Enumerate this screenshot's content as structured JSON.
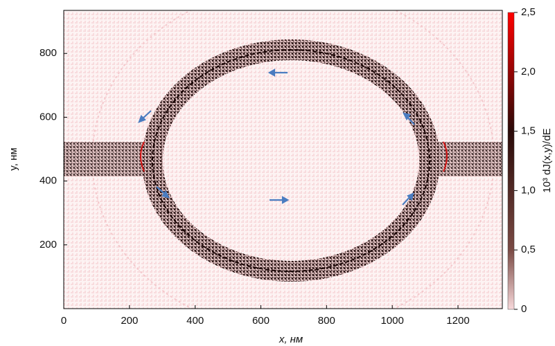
{
  "chart_data": {
    "type": "vector-field",
    "x_label": "x, нм",
    "y_label": "y, нм",
    "colorbar_label": "10³ dJ(x,y)/dE",
    "xlim": [
      0,
      1335
    ],
    "xticks": [
      0,
      200,
      400,
      600,
      800,
      1000,
      1200
    ],
    "ylim": [
      0,
      935
    ],
    "yticks": [
      200,
      400,
      600,
      800
    ],
    "clim": [
      0,
      2.5
    ],
    "cticks": [
      0,
      {
        "value": 0.5,
        "label": "0,5"
      },
      {
        "value": 1.0,
        "label": "1,0"
      },
      {
        "value": 1.5,
        "label": "1,5"
      },
      {
        "value": 2.0,
        "label": "2,0"
      },
      {
        "value": 2.5,
        "label": "2,5"
      }
    ],
    "colorscale": [
      "#f7d8da",
      "#7a4a44",
      "#2a0a08",
      "#ff0000"
    ]
  }
}
